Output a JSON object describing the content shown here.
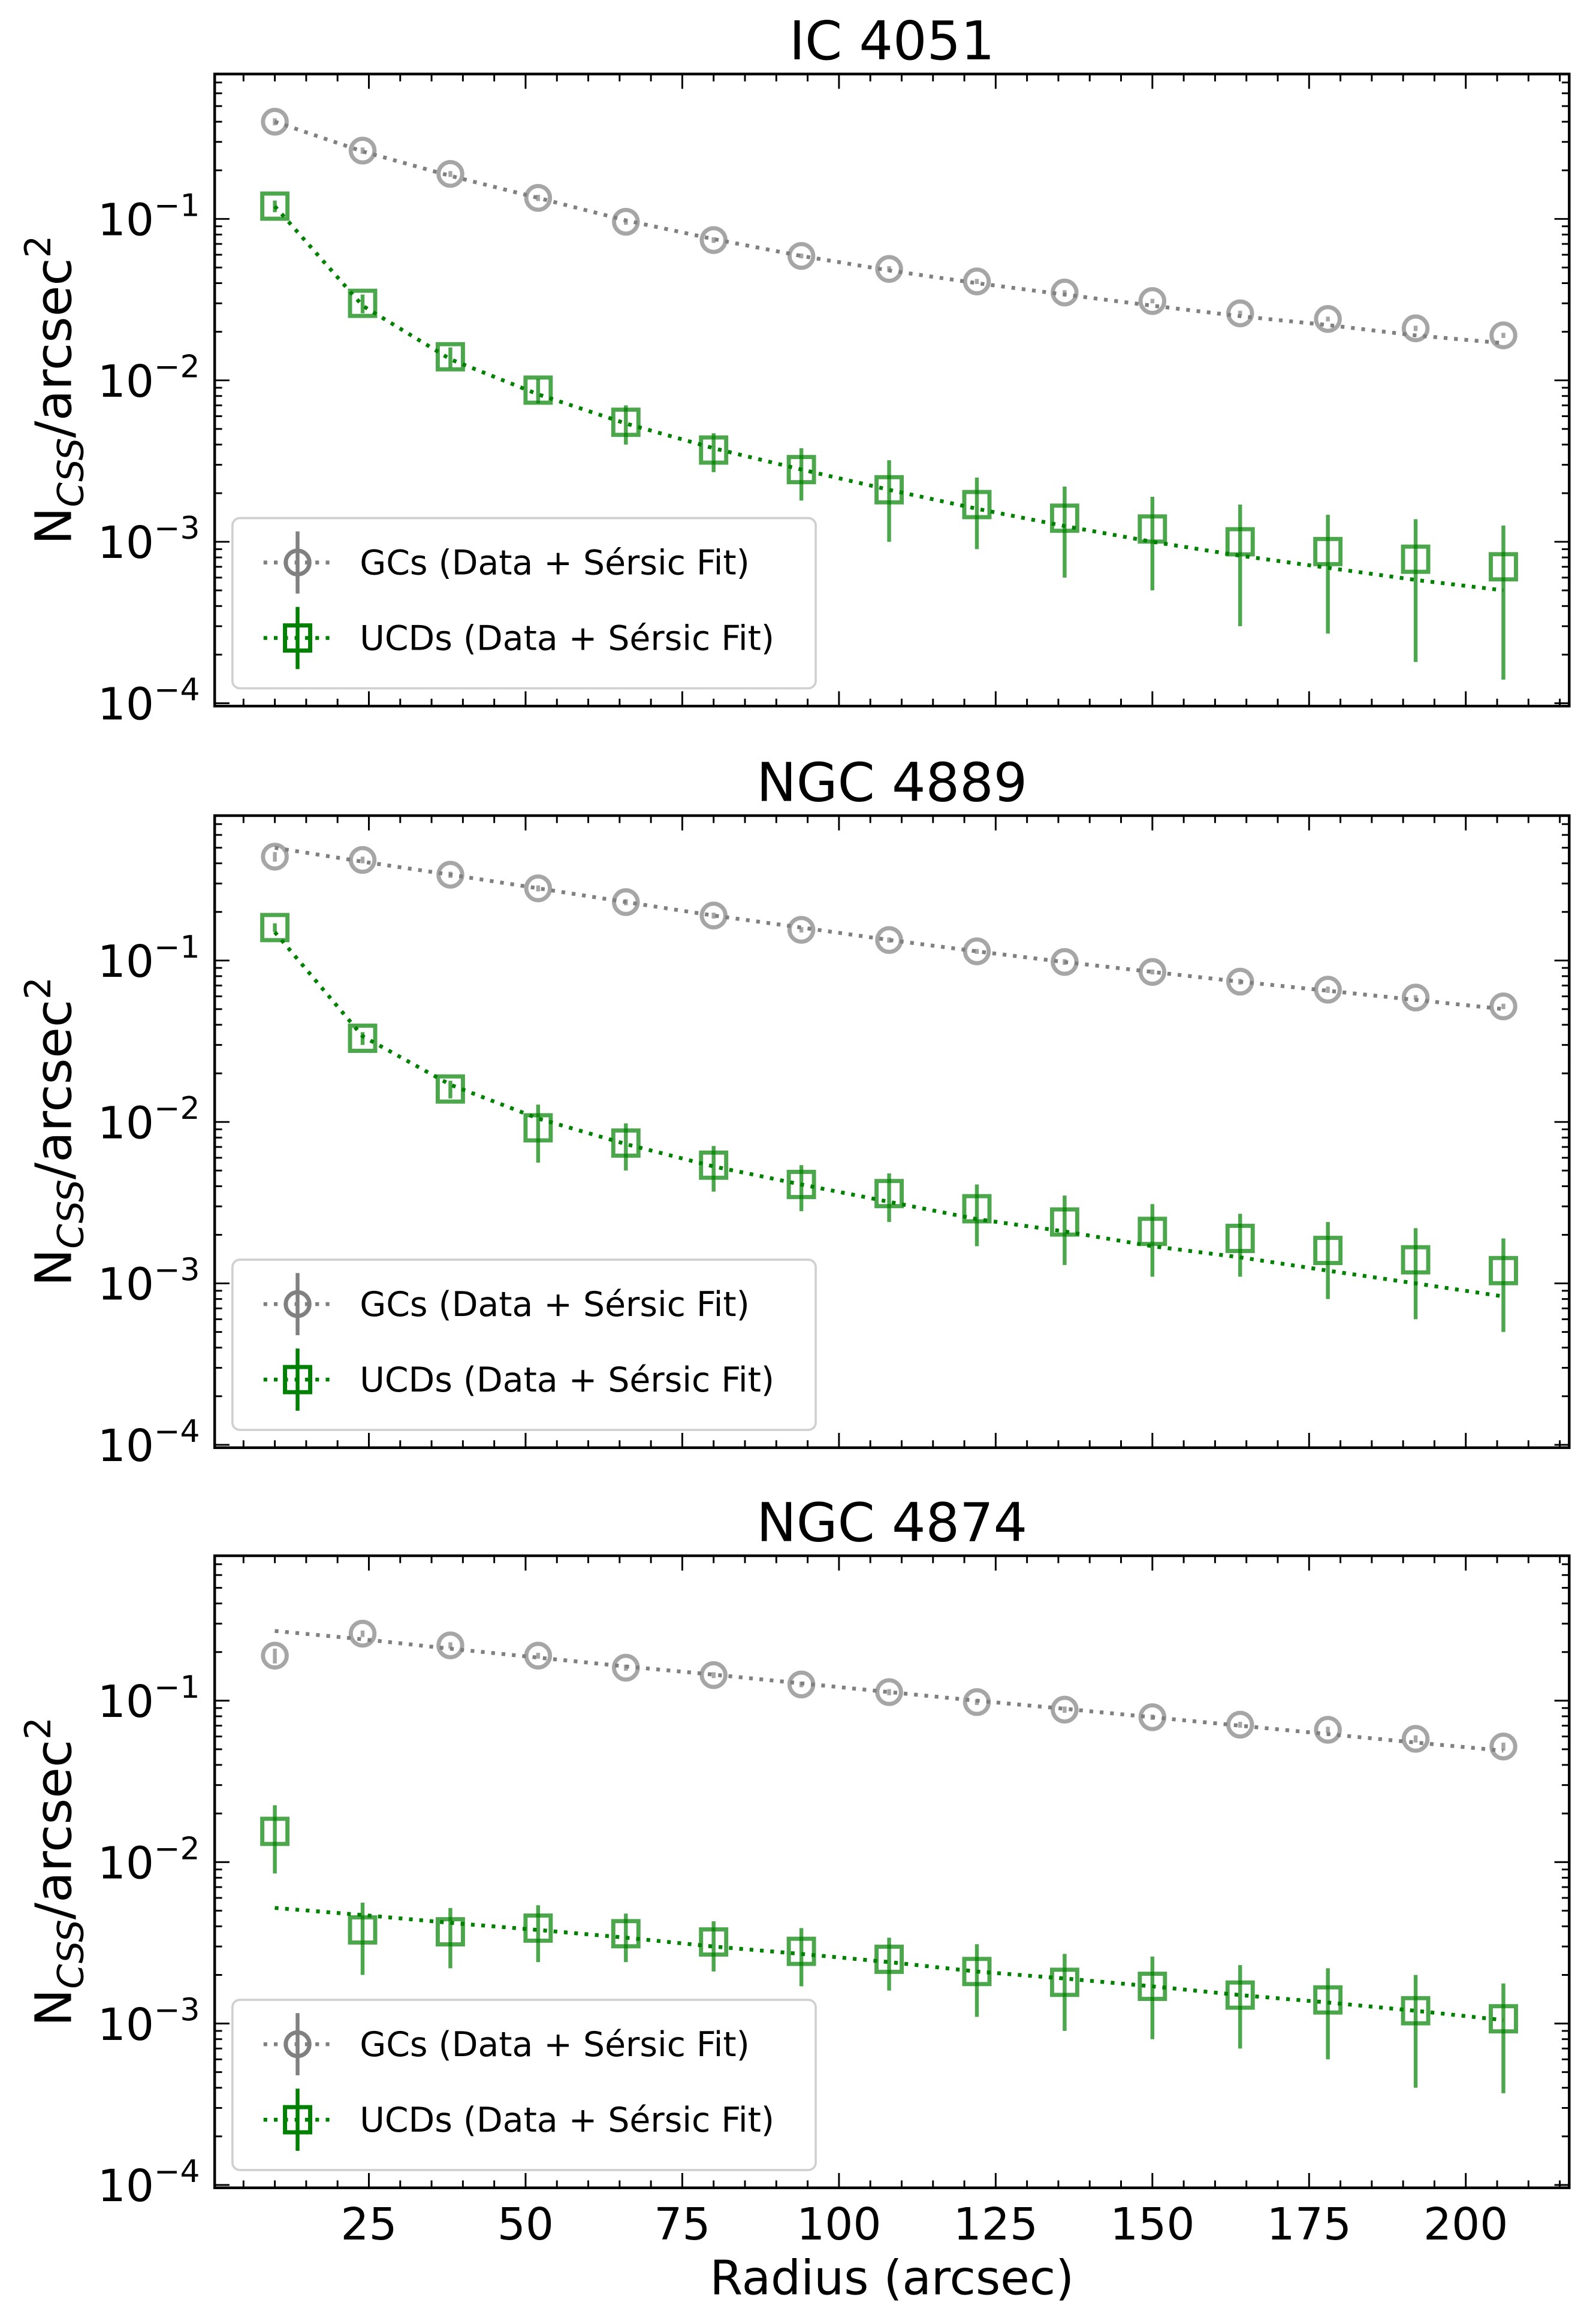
{
  "chart_data": [
    {
      "type": "scatter",
      "title": "IC 4051",
      "ylabel": {
        "main": "N",
        "sub": "CSS",
        "rest": "/arcsec",
        "sup": "2"
      },
      "xlabel": "",
      "yscale": "log",
      "ylim": [
        9.6e-05,
        0.79
      ],
      "xlim": [
        0.4,
        216.5
      ],
      "yticks": [
        {
          "base": "10",
          "exp": "−1",
          "value": 0.1
        },
        {
          "base": "10",
          "exp": "−2",
          "value": 0.01
        },
        {
          "base": "10",
          "exp": "−3",
          "value": 0.001
        },
        {
          "base": "10",
          "exp": "−4",
          "value": 0.0001
        }
      ],
      "legend": {
        "placement": "lower-left",
        "entries": [
          "GCs (Data + Sérsic Fit)",
          "UCDs (Data + Sérsic Fit)"
        ]
      },
      "x": [
        10,
        24,
        38,
        52,
        66,
        80,
        94,
        108,
        122,
        136,
        150,
        164,
        178,
        192,
        206
      ],
      "series": [
        {
          "name": "GCs (Data + Sérsic Fit)",
          "color": "#808080",
          "marker": "circle",
          "values": [
            0.4,
            0.265,
            0.19,
            0.135,
            0.096,
            0.074,
            0.059,
            0.049,
            0.041,
            0.035,
            0.031,
            0.026,
            0.024,
            0.021,
            0.019
          ],
          "yerr": [
            0.02,
            0.012,
            0.008,
            0.006,
            0.004,
            0.003,
            0.002,
            0.002,
            0.0015,
            0.0012,
            0.001,
            0.001,
            0.0008,
            0.0008,
            0.0007
          ],
          "fit": [
            0.4,
            0.262,
            0.185,
            0.135,
            0.098,
            0.075,
            0.059,
            0.048,
            0.04,
            0.034,
            0.029,
            0.025,
            0.022,
            0.019,
            0.017
          ]
        },
        {
          "name": "UCDs (Data + Sérsic Fit)",
          "color": "#008000",
          "marker": "square",
          "values": [
            0.12,
            0.03,
            0.014,
            0.0087,
            0.0055,
            0.0037,
            0.0028,
            0.0021,
            0.0017,
            0.0014,
            0.0012,
            0.001,
            0.00087,
            0.00078,
            0.0007
          ],
          "yerr": [
            0.01,
            0.004,
            0.002,
            0.0015,
            0.0015,
            0.001,
            0.001,
            0.0011,
            0.0008,
            0.0008,
            0.0007,
            0.0007,
            0.0006,
            0.0006,
            0.00056
          ],
          "fit": [
            0.12,
            0.029,
            0.0135,
            0.0082,
            0.0054,
            0.0038,
            0.0028,
            0.0021,
            0.0016,
            0.00125,
            0.001,
            0.00082,
            0.00069,
            0.00058,
            0.0005
          ]
        }
      ]
    },
    {
      "type": "scatter",
      "title": "NGC 4889",
      "ylabel": {
        "main": "N",
        "sub": "CSS",
        "rest": "/arcsec",
        "sup": "2"
      },
      "xlabel": "",
      "yscale": "log",
      "ylim": [
        9.6e-05,
        0.79
      ],
      "xlim": [
        0.4,
        216.5
      ],
      "yticks": [
        {
          "base": "10",
          "exp": "−1",
          "value": 0.1
        },
        {
          "base": "10",
          "exp": "−2",
          "value": 0.01
        },
        {
          "base": "10",
          "exp": "−3",
          "value": 0.001
        },
        {
          "base": "10",
          "exp": "−4",
          "value": 0.0001
        }
      ],
      "legend": {
        "placement": "lower-left",
        "entries": [
          "GCs (Data + Sérsic Fit)",
          "UCDs (Data + Sérsic Fit)"
        ]
      },
      "x": [
        10,
        24,
        38,
        52,
        66,
        80,
        94,
        108,
        122,
        136,
        150,
        164,
        178,
        192,
        206
      ],
      "series": [
        {
          "name": "GCs (Data + Sérsic Fit)",
          "color": "#808080",
          "marker": "circle",
          "values": [
            0.44,
            0.42,
            0.34,
            0.28,
            0.23,
            0.19,
            0.155,
            0.134,
            0.114,
            0.098,
            0.085,
            0.074,
            0.066,
            0.059,
            0.052
          ],
          "yerr": [
            0.03,
            0.02,
            0.015,
            0.012,
            0.01,
            0.008,
            0.006,
            0.005,
            0.004,
            0.004,
            0.003,
            0.003,
            0.003,
            0.002,
            0.002
          ],
          "fit": [
            0.5,
            0.41,
            0.34,
            0.28,
            0.23,
            0.19,
            0.16,
            0.134,
            0.114,
            0.098,
            0.085,
            0.074,
            0.065,
            0.057,
            0.05
          ]
        },
        {
          "name": "UCDs (Data + Sérsic Fit)",
          "color": "#008000",
          "marker": "square",
          "values": [
            0.16,
            0.033,
            0.016,
            0.0092,
            0.0074,
            0.0054,
            0.0041,
            0.0036,
            0.0029,
            0.0024,
            0.0021,
            0.0019,
            0.0016,
            0.0014,
            0.0012
          ],
          "yerr": [
            0.01,
            0.003,
            0.002,
            0.0036,
            0.0024,
            0.0017,
            0.0013,
            0.0012,
            0.0012,
            0.0011,
            0.001,
            0.0008,
            0.0008,
            0.0008,
            0.0007
          ],
          "fit": [
            0.15,
            0.034,
            0.017,
            0.0105,
            0.0073,
            0.0053,
            0.0041,
            0.0032,
            0.0025,
            0.0021,
            0.0017,
            0.00145,
            0.0012,
            0.001,
            0.00083
          ]
        }
      ]
    },
    {
      "type": "scatter",
      "title": "NGC 4874",
      "ylabel": {
        "main": "N",
        "sub": "CSS",
        "rest": "/arcsec",
        "sup": "2"
      },
      "xlabel": "Radius (arcsec)",
      "yscale": "log",
      "ylim": [
        9.6e-05,
        0.79
      ],
      "xlim": [
        0.4,
        216.5
      ],
      "xticks": [
        "25",
        "50",
        "75",
        "100",
        "125",
        "150",
        "175",
        "200"
      ],
      "yticks": [
        {
          "base": "10",
          "exp": "−1",
          "value": 0.1
        },
        {
          "base": "10",
          "exp": "−2",
          "value": 0.01
        },
        {
          "base": "10",
          "exp": "−3",
          "value": 0.001
        },
        {
          "base": "10",
          "exp": "−4",
          "value": 0.0001
        }
      ],
      "legend": {
        "placement": "lower-left",
        "entries": [
          "GCs (Data + Sérsic Fit)",
          "UCDs (Data + Sérsic Fit)"
        ]
      },
      "x": [
        10,
        24,
        38,
        52,
        66,
        80,
        94,
        108,
        122,
        136,
        150,
        164,
        178,
        192,
        206
      ],
      "series": [
        {
          "name": "GCs (Data + Sérsic Fit)",
          "color": "#808080",
          "marker": "circle",
          "values": [
            0.19,
            0.26,
            0.22,
            0.19,
            0.16,
            0.144,
            0.126,
            0.113,
            0.098,
            0.088,
            0.079,
            0.071,
            0.066,
            0.058,
            0.052
          ],
          "yerr": [
            0.02,
            0.012,
            0.01,
            0.008,
            0.007,
            0.006,
            0.005,
            0.005,
            0.004,
            0.004,
            0.003,
            0.003,
            0.003,
            0.003,
            0.003
          ],
          "fit": [
            0.27,
            0.24,
            0.21,
            0.185,
            0.163,
            0.145,
            0.128,
            0.113,
            0.1,
            0.089,
            0.079,
            0.07,
            0.062,
            0.055,
            0.049
          ]
        },
        {
          "name": "UCDs (Data + Sérsic Fit)",
          "color": "#008000",
          "marker": "square",
          "values": [
            0.0155,
            0.0038,
            0.0037,
            0.0039,
            0.0036,
            0.0032,
            0.0028,
            0.0025,
            0.0021,
            0.0018,
            0.0017,
            0.0015,
            0.0014,
            0.0012,
            0.00107
          ],
          "yerr": [
            0.007,
            0.0018,
            0.0015,
            0.0015,
            0.0012,
            0.0011,
            0.0011,
            0.0009,
            0.001,
            0.0009,
            0.0009,
            0.0008,
            0.0008,
            0.0008,
            0.0007
          ],
          "fit": [
            0.0052,
            0.0047,
            0.0042,
            0.0038,
            0.0034,
            0.003,
            0.0027,
            0.0024,
            0.0021,
            0.0019,
            0.0017,
            0.0015,
            0.00135,
            0.0012,
            0.00105
          ]
        }
      ]
    }
  ]
}
